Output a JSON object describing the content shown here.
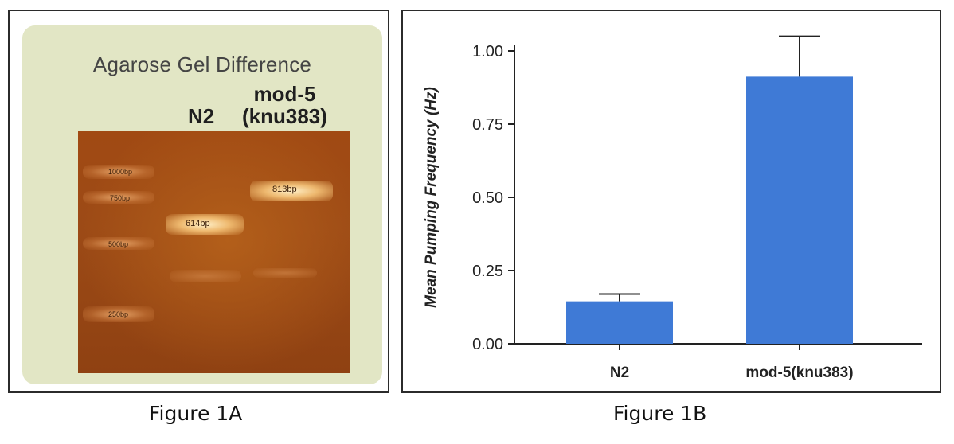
{
  "figure_a": {
    "caption": "Figure 1A",
    "gel_title": "Agarose Gel Difference",
    "lane_labels": {
      "n2": "N2",
      "mod5_line1": "mod-5",
      "mod5_line2": "(knu383)"
    },
    "ladder_labels": {
      "bp1000": "1000bp",
      "bp750": "750bp",
      "bp500": "500bp",
      "bp250": "250bp"
    },
    "band_labels": {
      "n2_band": "614bp",
      "mod5_band": "813bp"
    }
  },
  "figure_b": {
    "caption": "Figure 1B"
  },
  "chart_data": {
    "type": "bar",
    "categories": [
      "N2",
      "mod-5(knu383)"
    ],
    "values": [
      0.145,
      0.912
    ],
    "error_upper": [
      0.17,
      1.05
    ],
    "title": "",
    "xlabel": "",
    "ylabel": "Mean Pumping Frequency (Hz)",
    "ylim": [
      0,
      1.0
    ],
    "yticks": [
      "0.00",
      "0.25",
      "0.50",
      "0.75",
      "1.00"
    ],
    "ytick_values": [
      0,
      0.25,
      0.5,
      0.75,
      1.0
    ],
    "grid": false,
    "bar_color": "#3f7ad6"
  }
}
